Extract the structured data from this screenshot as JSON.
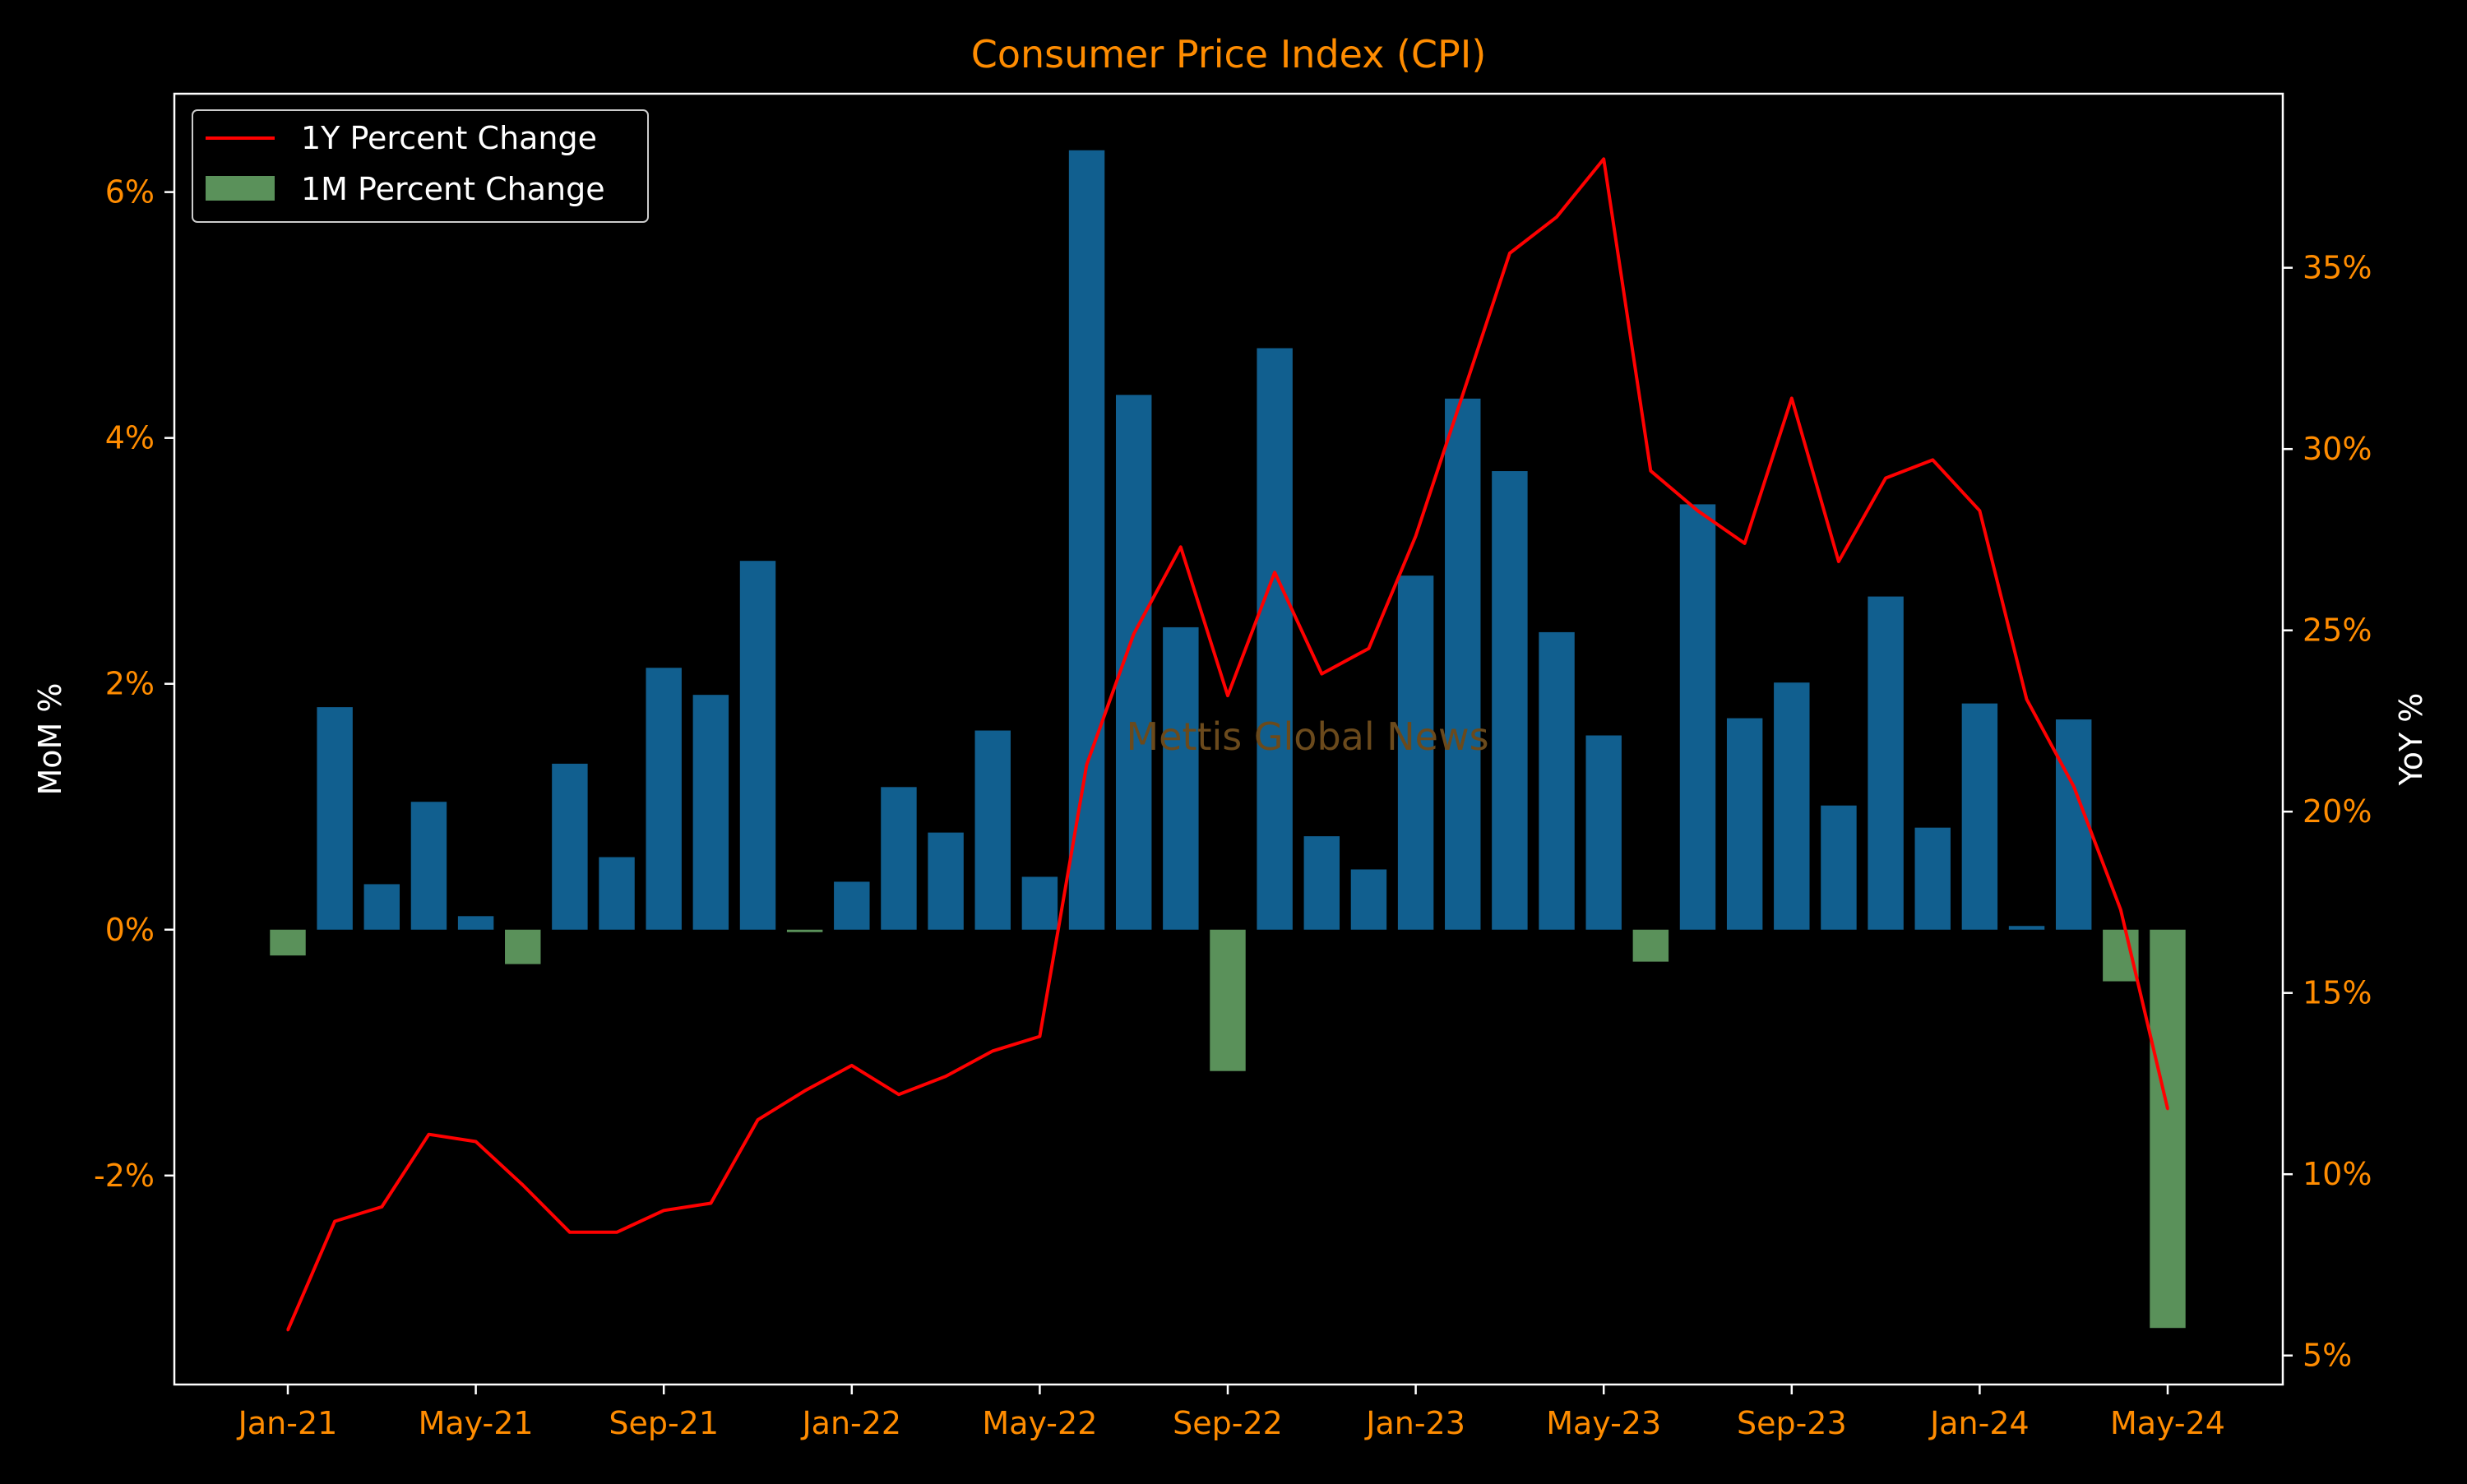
{
  "colors": {
    "background": "#000000",
    "title": "#ff8c00",
    "tick_labels": "#ff8c00",
    "axis_labels": "#ffffff",
    "frame": "#ffffff",
    "positive_bar": "#115f8f",
    "negative_bar": "#5a915a",
    "yoy_line": "#ff0000",
    "watermark": "#6b4a1c"
  },
  "watermark": "Mettis Global News",
  "chart_data": {
    "type": "bar",
    "title": "Consumer Price Index (CPI)",
    "xlabel": "",
    "ylabel_left": "MoM %",
    "ylabel_right": "YoY %",
    "legend_position": "top-left",
    "grid": false,
    "x_tick_labels": [
      "Jan-21",
      "May-21",
      "Sep-21",
      "Jan-22",
      "May-22",
      "Sep-22",
      "Jan-23",
      "May-23",
      "Sep-23",
      "Jan-24",
      "May-24"
    ],
    "left_ticks": [
      "-2%",
      "0%",
      "2%",
      "4%",
      "6%"
    ],
    "right_ticks": [
      "5%",
      "10%",
      "15%",
      "20%",
      "25%",
      "30%",
      "35%"
    ],
    "ylim_left": [
      -3.7,
      6.8
    ],
    "ylim_right": [
      4.2,
      39.8
    ],
    "categories": [
      "Jan-21",
      "Feb-21",
      "Mar-21",
      "Apr-21",
      "May-21",
      "Jun-21",
      "Jul-21",
      "Aug-21",
      "Sep-21",
      "Oct-21",
      "Nov-21",
      "Dec-21",
      "Jan-22",
      "Feb-22",
      "Mar-22",
      "Apr-22",
      "May-22",
      "Jun-22",
      "Jul-22",
      "Aug-22",
      "Sep-22",
      "Oct-22",
      "Nov-22",
      "Dec-22",
      "Jan-23",
      "Feb-23",
      "Mar-23",
      "Apr-23",
      "May-23",
      "Jun-23",
      "Jul-23",
      "Aug-23",
      "Sep-23",
      "Oct-23",
      "Nov-23",
      "Dec-23",
      "Jan-24",
      "Feb-24",
      "Mar-24",
      "Apr-24",
      "May-24"
    ],
    "series": [
      {
        "name": "1M Percent Change",
        "kind": "bar",
        "axis": "left",
        "values": [
          -0.21,
          1.81,
          0.37,
          1.04,
          0.11,
          -0.28,
          1.35,
          0.59,
          2.13,
          1.91,
          3.0,
          -0.02,
          0.39,
          1.16,
          0.79,
          1.62,
          0.43,
          6.34,
          4.35,
          2.46,
          -1.15,
          4.73,
          0.76,
          0.49,
          2.88,
          4.32,
          3.73,
          2.42,
          1.58,
          -0.26,
          3.46,
          1.72,
          2.01,
          1.01,
          2.71,
          0.83,
          1.84,
          0.03,
          1.71,
          -0.42,
          -3.24
        ]
      },
      {
        "name": "1Y Percent Change",
        "kind": "line",
        "axis": "right",
        "values": [
          5.7,
          8.7,
          9.1,
          11.1,
          10.9,
          9.7,
          8.4,
          8.4,
          9.0,
          9.2,
          11.5,
          12.3,
          13.0,
          12.2,
          12.7,
          13.4,
          13.8,
          21.3,
          24.9,
          27.3,
          23.2,
          26.6,
          23.8,
          24.5,
          27.6,
          31.5,
          35.4,
          36.4,
          38.0,
          29.4,
          28.3,
          27.4,
          31.4,
          26.9,
          29.2,
          29.7,
          28.3,
          23.1,
          20.7,
          17.3,
          11.8
        ]
      }
    ]
  }
}
